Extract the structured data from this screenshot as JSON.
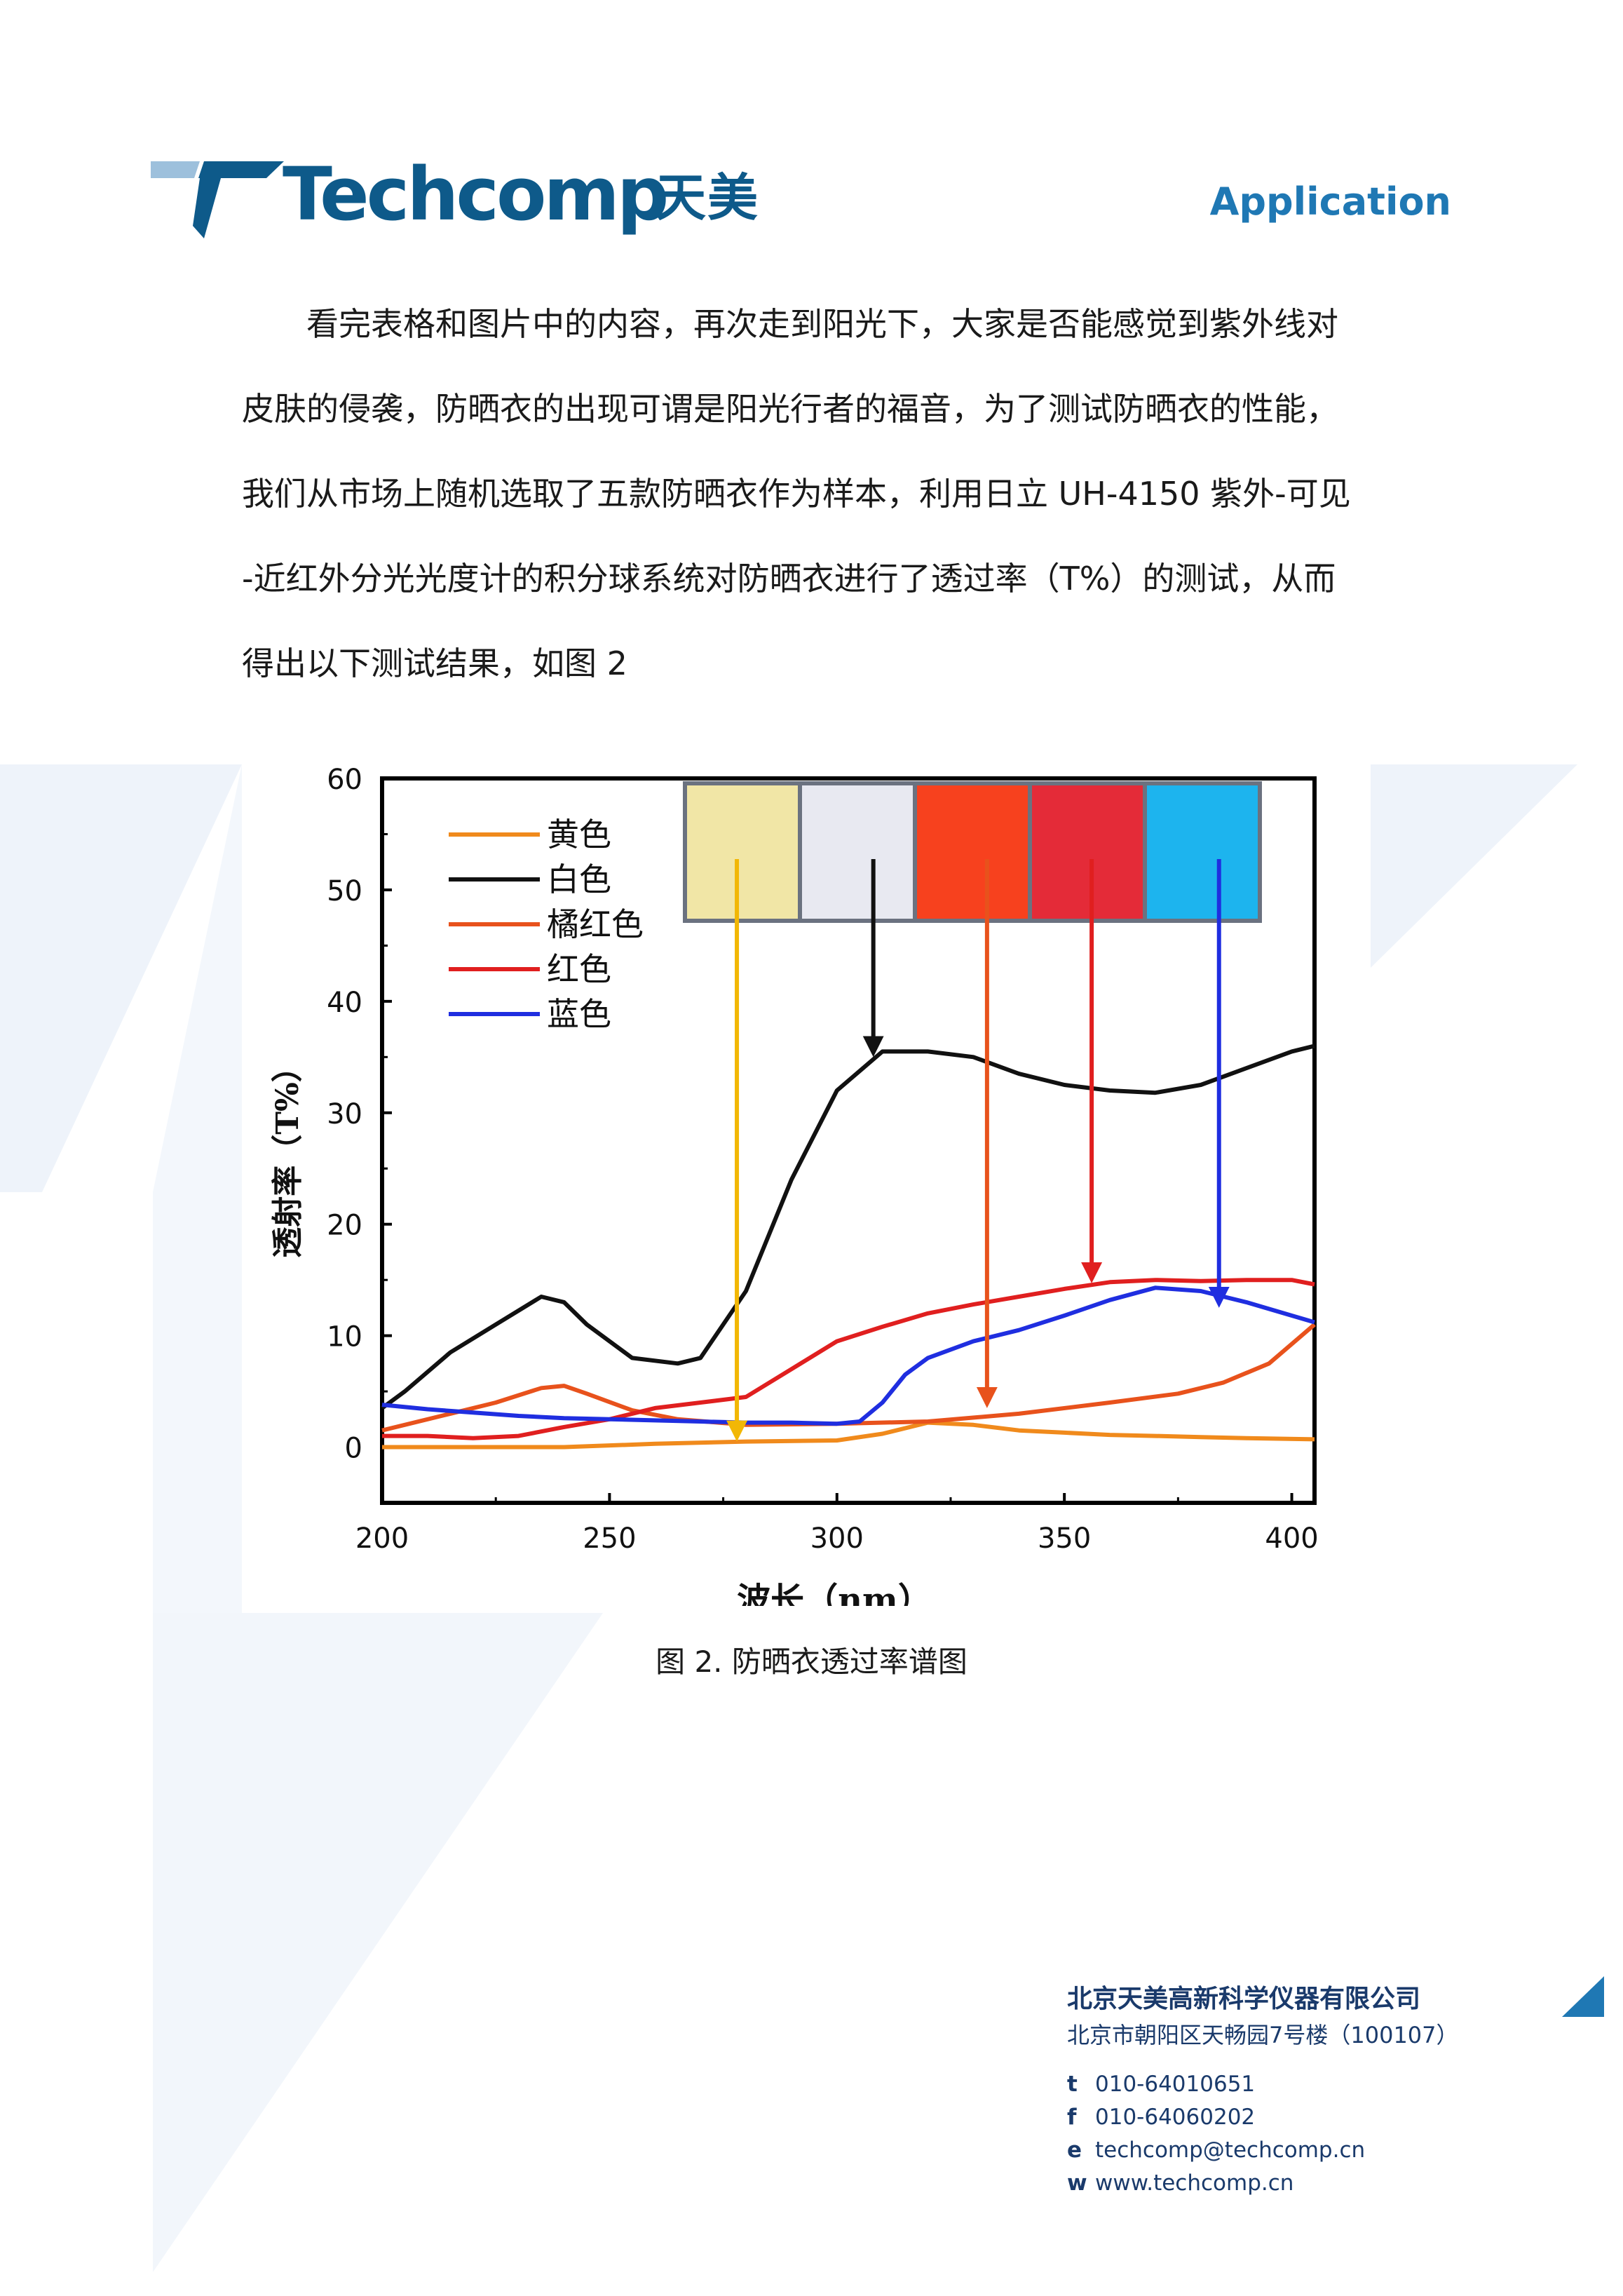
{
  "header": {
    "brand": "Techcomp",
    "brand_cn": "天美",
    "section": "Application",
    "brand_color": "#0e5a8a",
    "accent_color": "#1f78b4"
  },
  "paragraph": {
    "lines": [
      "看完表格和图片中的内容，再次走到阳光下，大家是否能感觉到紫外线对",
      "皮肤的侵袭，防晒衣的出现可谓是阳光行者的福音，为了测试防晒衣的性能，",
      "我们从市场上随机选取了五款防晒衣作为样本，利用日立 UH-4150 紫外-可见",
      "-近红外分光光度计的积分球系统对防晒衣进行了透过率（T%）的测试，从而",
      "得出以下测试结果，如图 2"
    ]
  },
  "figure": {
    "caption": "图 2. 防晒衣透过率谱图"
  },
  "chart_data": {
    "type": "line",
    "xlabel": "波长（nm）",
    "ylabel": "透射率（T%）",
    "xlim": [
      200,
      405
    ],
    "ylim": [
      -5,
      60
    ],
    "xticks": [
      200,
      250,
      300,
      350,
      400
    ],
    "yticks": [
      0,
      10,
      20,
      30,
      40,
      50,
      60
    ],
    "legend_position": "top-left",
    "grid": false,
    "series": [
      {
        "name": "黄色",
        "color": "#f08a1c",
        "x": [
          200,
          220,
          240,
          260,
          280,
          300,
          310,
          320,
          330,
          340,
          350,
          360,
          370,
          380,
          390,
          405
        ],
        "y": [
          0.0,
          0.0,
          0.0,
          0.3,
          0.5,
          0.6,
          1.2,
          2.2,
          2.0,
          1.5,
          1.3,
          1.1,
          1.0,
          0.9,
          0.8,
          0.7
        ]
      },
      {
        "name": "白色",
        "color": "#111111",
        "x": [
          200,
          205,
          215,
          225,
          235,
          240,
          245,
          255,
          265,
          270,
          280,
          290,
          300,
          310,
          320,
          330,
          340,
          350,
          360,
          370,
          380,
          390,
          400,
          405
        ],
        "y": [
          3.5,
          5.0,
          8.5,
          11.0,
          13.5,
          13.0,
          11.0,
          8.0,
          7.5,
          8.0,
          14.0,
          24.0,
          32.0,
          35.5,
          35.5,
          35.0,
          33.5,
          32.5,
          32.0,
          31.8,
          32.5,
          34.0,
          35.5,
          36.0
        ]
      },
      {
        "name": "橘红色",
        "color": "#e8521c",
        "x": [
          200,
          215,
          225,
          235,
          240,
          245,
          255,
          265,
          280,
          300,
          320,
          340,
          360,
          375,
          385,
          395,
          405
        ],
        "y": [
          1.5,
          3.0,
          4.0,
          5.3,
          5.5,
          4.8,
          3.3,
          2.5,
          2.0,
          2.1,
          2.3,
          3.0,
          4.0,
          4.8,
          5.8,
          7.5,
          11.0
        ]
      },
      {
        "name": "红色",
        "color": "#e01f1f",
        "x": [
          200,
          210,
          220,
          230,
          240,
          250,
          260,
          270,
          280,
          290,
          300,
          310,
          320,
          330,
          340,
          350,
          360,
          370,
          380,
          390,
          400,
          405
        ],
        "y": [
          1.0,
          1.0,
          0.8,
          1.0,
          1.8,
          2.5,
          3.5,
          4.0,
          4.5,
          7.0,
          9.5,
          10.8,
          12.0,
          12.8,
          13.5,
          14.2,
          14.8,
          15.0,
          14.9,
          15.0,
          15.0,
          14.6
        ]
      },
      {
        "name": "蓝色",
        "color": "#1f2ee0",
        "x": [
          200,
          210,
          220,
          230,
          240,
          250,
          260,
          270,
          280,
          290,
          300,
          305,
          310,
          315,
          320,
          330,
          340,
          350,
          360,
          370,
          380,
          390,
          400,
          405
        ],
        "y": [
          3.8,
          3.4,
          3.1,
          2.8,
          2.6,
          2.5,
          2.4,
          2.3,
          2.2,
          2.2,
          2.1,
          2.3,
          4.0,
          6.5,
          8.0,
          9.5,
          10.5,
          11.8,
          13.2,
          14.3,
          14.0,
          13.0,
          11.8,
          11.2
        ]
      }
    ],
    "swatches": [
      {
        "name": "黄色",
        "color": "#f1e6a6",
        "arrow_color": "#f2b705",
        "arrow_target": {
          "x": 278,
          "y": 0.5
        }
      },
      {
        "name": "白色",
        "color": "#e8e9f1",
        "arrow_color": "#111111",
        "arrow_target": {
          "x": 308,
          "y": 35.0
        }
      },
      {
        "name": "橘红色",
        "color": "#f7411e",
        "arrow_color": "#e8521c",
        "arrow_target": {
          "x": 333,
          "y": 3.5
        }
      },
      {
        "name": "红色",
        "color": "#e42b38",
        "arrow_color": "#e01f1f",
        "arrow_target": {
          "x": 356,
          "y": 14.7
        }
      },
      {
        "name": "蓝色",
        "color": "#1db4ee",
        "arrow_color": "#1f2ee0",
        "arrow_target": {
          "x": 384,
          "y": 12.5
        }
      }
    ]
  },
  "footer": {
    "company": "北京天美高新科学仪器有限公司",
    "address": "北京市朝阳区天畅园7号楼（100107）",
    "contacts": [
      {
        "key": "t",
        "value": "010-64010651"
      },
      {
        "key": "f",
        "value": "010-64060202"
      },
      {
        "key": "e",
        "value": "techcomp@techcomp.cn"
      },
      {
        "key": "w",
        "value": "www.techcomp.cn"
      }
    ]
  }
}
